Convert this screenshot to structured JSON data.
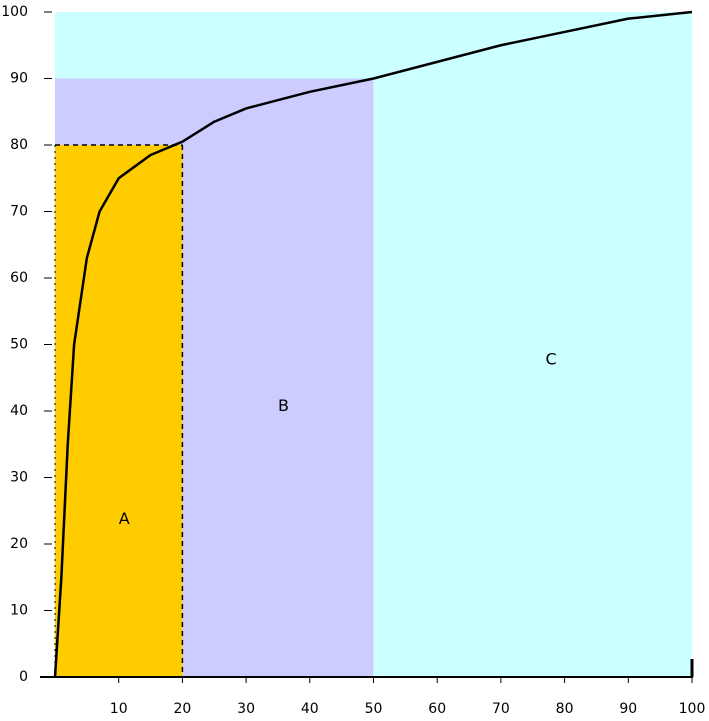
{
  "chart_data": {
    "type": "line",
    "x": [
      0,
      1,
      2,
      3,
      5,
      7,
      10,
      15,
      20,
      25,
      30,
      40,
      50,
      60,
      70,
      80,
      90,
      100
    ],
    "values": [
      0,
      15,
      35,
      50,
      63,
      70,
      75,
      78.5,
      80.5,
      83.5,
      85.5,
      88,
      90,
      92.5,
      95,
      97,
      99,
      100
    ],
    "color": "#000000",
    "regions": [
      {
        "label": "C",
        "x": [
          0,
          100
        ],
        "y": [
          0,
          100
        ],
        "color": "#ccffff"
      },
      {
        "label": "B",
        "x": [
          0,
          50
        ],
        "y": [
          0,
          90
        ],
        "color": "#ccccff"
      },
      {
        "label": "A",
        "x": [
          0,
          20
        ],
        "y": [
          0,
          80
        ],
        "color": "#ffcc00"
      }
    ],
    "xlim": [
      0,
      100
    ],
    "ylim": [
      0,
      100
    ],
    "xticks": [
      10,
      20,
      30,
      40,
      50,
      60,
      70,
      80,
      90,
      100
    ],
    "yticks": [
      0,
      10,
      20,
      30,
      40,
      50,
      60,
      70,
      80,
      90,
      100
    ]
  }
}
